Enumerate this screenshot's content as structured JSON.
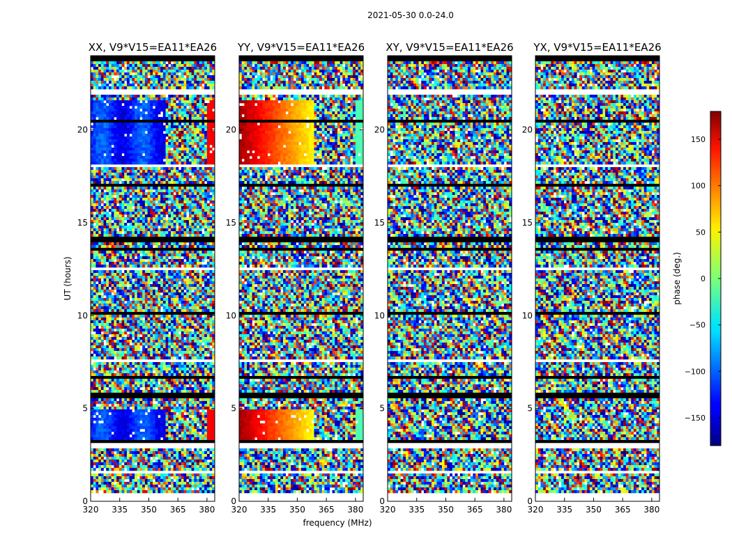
{
  "suptitle": "2021-05-30 0.0-24.0",
  "chart_data": {
    "type": "heatmap",
    "description_x": "frequency (MHz)",
    "xlabel": "frequency (MHz)",
    "ylabel": "UT (hours)",
    "xlim": [
      320,
      384
    ],
    "ylim": [
      0,
      24
    ],
    "xticks": [
      320,
      335,
      350,
      365,
      380
    ],
    "yticks": [
      0,
      5,
      10,
      15,
      20
    ],
    "panels": [
      {
        "title": "XX, V9*V15=EA11*EA26",
        "pol": "XX"
      },
      {
        "title": "YY, V9*V15=EA11*EA26",
        "pol": "YY"
      },
      {
        "title": "XY, V9*V15=EA11*EA26",
        "pol": "XY"
      },
      {
        "title": "YX, V9*V15=EA11*EA26",
        "pol": "YX"
      }
    ],
    "colorbar": {
      "label": "phase (deg.)",
      "vmin": -180,
      "vmax": 180,
      "ticks": [
        150,
        100,
        50,
        0,
        -50,
        -100,
        -150
      ],
      "tick_labels": [
        "150",
        "100",
        "50",
        "0",
        "−50",
        "−100",
        "−150"
      ],
      "colormap": "jet"
    },
    "flagged_ut_ranges": [
      [
        2.9,
        3.1
      ],
      [
        1.55,
        1.7
      ],
      [
        12.45,
        12.6
      ],
      [
        18.0,
        18.2
      ],
      [
        21.9,
        22.2
      ],
      [
        22.6,
        22.7
      ],
      [
        23.35,
        23.45
      ],
      [
        7.5,
        7.6
      ]
    ],
    "black_ut_ranges": [
      [
        5.5,
        5.8
      ],
      [
        13.9,
        14.3
      ],
      [
        23.7,
        23.85
      ]
    ]
  }
}
